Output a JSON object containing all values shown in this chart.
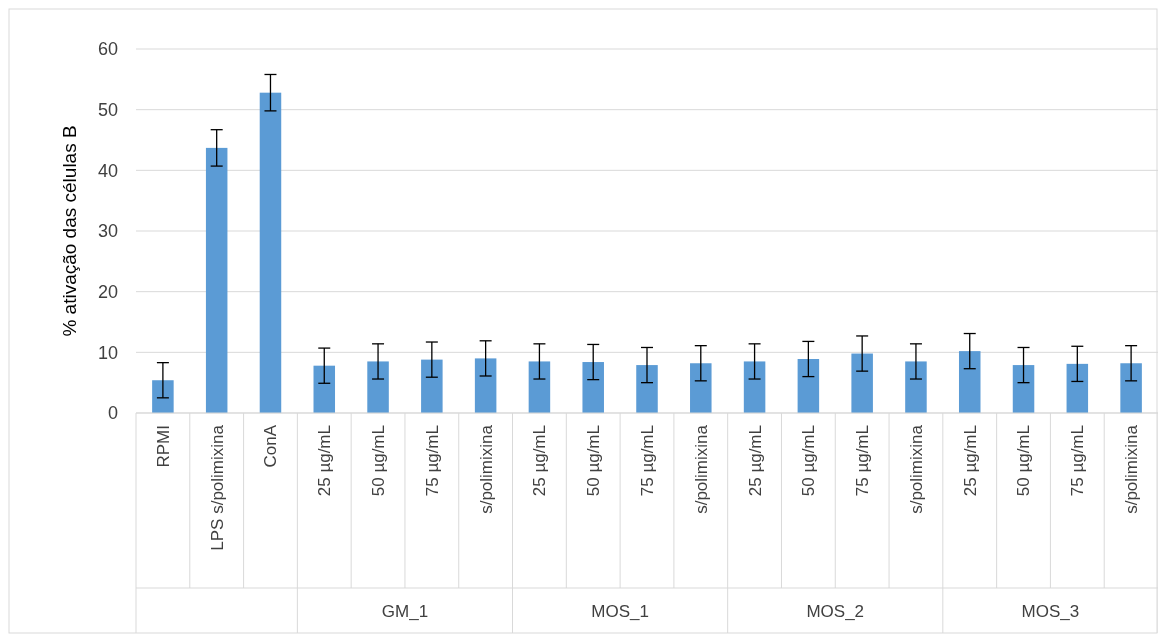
{
  "chart_data": {
    "type": "bar",
    "ylabel": "% ativação das células B",
    "categories": [
      "RPMI",
      "LPS s/polimixina",
      "ConA",
      "25 µg/mL",
      "50 µg/mL",
      "75 µg/mL",
      "s/polimixina",
      "25 µg/mL",
      "50 µg/mL",
      "75 µg/mL",
      "s/polimixina",
      "25 µg/mL",
      "50 µg/mL",
      "75 µg/mL",
      "s/polimixina",
      "25 µg/mL",
      "50 µg/mL",
      "75 µg/mL",
      "s/polimixina"
    ],
    "values": [
      5.4,
      43.7,
      52.8,
      7.8,
      8.5,
      8.8,
      9.0,
      8.5,
      8.4,
      7.9,
      8.2,
      8.5,
      8.9,
      9.8,
      8.5,
      10.2,
      7.9,
      8.1,
      8.2
    ],
    "errors": [
      2.9,
      3,
      3,
      2.9,
      2.9,
      2.9,
      2.9,
      2.9,
      2.9,
      2.9,
      2.9,
      2.9,
      2.9,
      2.9,
      2.9,
      2.9,
      2.9,
      2.9,
      2.9
    ],
    "color": "#5b9bd5",
    "ylim": [
      0,
      60
    ],
    "yticks": [
      0,
      10,
      20,
      30,
      40,
      50,
      60
    ],
    "grid": "y",
    "annotations": [
      "GM_1",
      "MOS_1",
      "MOS_2",
      "MOS_3"
    ]
  }
}
